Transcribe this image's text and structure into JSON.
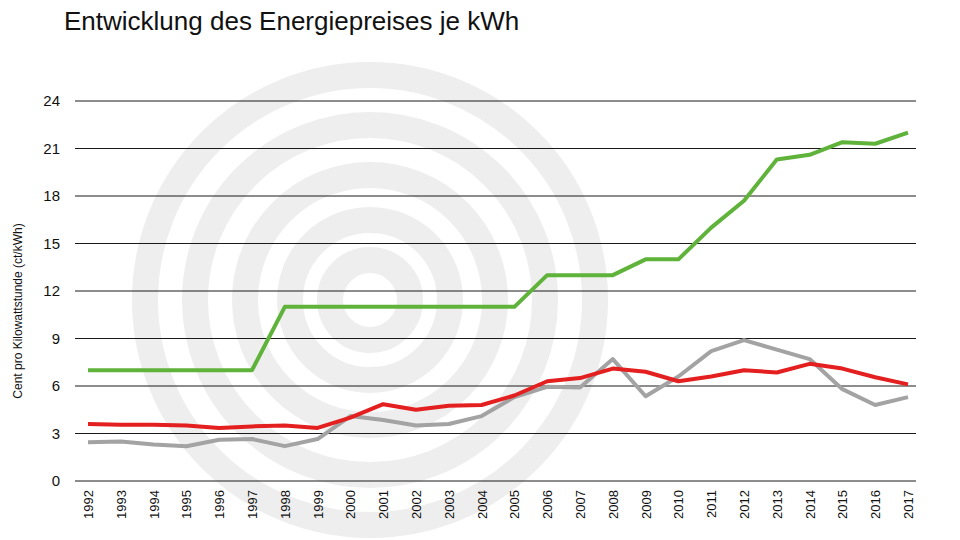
{
  "chart_data": {
    "type": "line",
    "title": "Entwicklung des Energiepreises je kWh",
    "y_label": "Cent pro Kilowattstunde (ct/kWh)",
    "categories": [
      "1992",
      "1993",
      "1994",
      "1995",
      "1996",
      "1997",
      "1998",
      "1999",
      "2000",
      "2001",
      "2002",
      "2003",
      "2004",
      "2005",
      "2006",
      "2007",
      "2008",
      "2009",
      "2010",
      "2011",
      "2012",
      "2013",
      "2014",
      "2015",
      "2016",
      "2017"
    ],
    "series": [
      {
        "color": "#5fb33a",
        "values": [
          7,
          7,
          7,
          7,
          7,
          7,
          11,
          11,
          11,
          11,
          11,
          11,
          11,
          11,
          13,
          13,
          13,
          14,
          14,
          16,
          17.7,
          20.3,
          20.6,
          21.4,
          21.3,
          22
        ]
      },
      {
        "color": "#a3a3a3",
        "values": [
          2.45,
          2.5,
          2.3,
          2.2,
          2.6,
          2.65,
          2.2,
          2.65,
          4.1,
          3.85,
          3.5,
          3.6,
          4.1,
          5.3,
          5.95,
          5.9,
          7.7,
          5.35,
          6.6,
          8.2,
          8.9,
          8.3,
          7.7,
          5.8,
          4.8,
          5.3
        ]
      },
      {
        "color": "#e3201f",
        "values": [
          3.6,
          3.55,
          3.55,
          3.5,
          3.35,
          3.45,
          3.5,
          3.35,
          4,
          4.85,
          4.5,
          4.75,
          4.8,
          5.4,
          6.3,
          6.5,
          7.1,
          6.9,
          6.3,
          6.6,
          7,
          6.85,
          7.4,
          7.1,
          6.55,
          6.1
        ]
      }
    ],
    "ylim": [
      0,
      24
    ],
    "yticks": [
      0,
      3,
      6,
      9,
      12,
      15,
      18,
      21,
      24
    ],
    "grid": true
  }
}
